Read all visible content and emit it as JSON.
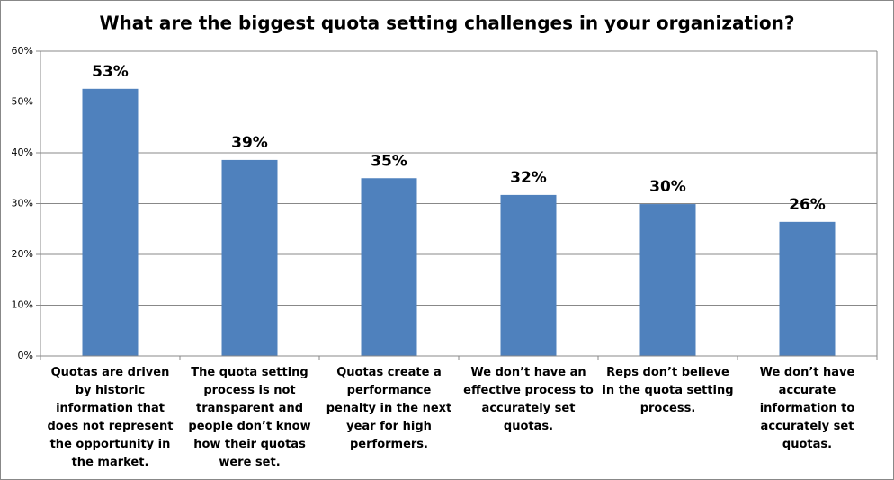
{
  "chart_data": {
    "type": "bar",
    "title": "What are the biggest quota setting challenges in your organization?",
    "categories": [
      "Quotas are driven by historic information that does not represent the opportunity in the market.",
      "The quota setting process is not transparent and people don’t know how their quotas were set.",
      "Quotas create a performance penalty in the next year for high performers.",
      "We don’t have an effective process to accurately set quotas.",
      "Reps don’t believe in the quota setting process.",
      "We don’t have accurate information to accurately set quotas."
    ],
    "values": [
      52.6,
      38.6,
      35.0,
      31.7,
      29.9,
      26.4
    ],
    "value_labels": [
      "53%",
      "39%",
      "35%",
      "32%",
      "30%",
      "26%"
    ],
    "color": "#4f81bd",
    "ylim": [
      0,
      60
    ],
    "yticks": [
      {
        "value": 0,
        "label": "0%"
      },
      {
        "value": 10,
        "label": "10%"
      },
      {
        "value": 20,
        "label": "20%"
      },
      {
        "value": 30,
        "label": "30%"
      },
      {
        "value": 40,
        "label": "40%"
      },
      {
        "value": 50,
        "label": "50%"
      },
      {
        "value": 60,
        "label": "60%"
      }
    ],
    "grid": true
  }
}
